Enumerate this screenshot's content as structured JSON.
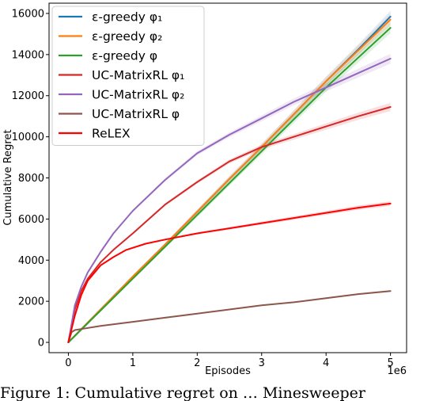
{
  "chart_data": {
    "type": "line",
    "xlabel": "Episodes",
    "ylabel": "Cumulative Regret",
    "x_offset_label": "1e6",
    "xlim": [
      -0.3,
      5.25
    ],
    "ylim": [
      -500,
      16500
    ],
    "xticks": [
      0,
      1,
      2,
      3,
      4,
      5
    ],
    "yticks": [
      0,
      2000,
      4000,
      6000,
      8000,
      10000,
      12000,
      14000,
      16000
    ],
    "legend_position": "top-left",
    "grid": false,
    "series": [
      {
        "name": "ε-greedy φ₁",
        "color": "#1f77b4",
        "x": [
          0,
          0.5,
          1,
          1.5,
          2,
          2.5,
          3,
          3.5,
          4,
          4.5,
          5
        ],
        "y": [
          0,
          1600,
          3200,
          4750,
          6350,
          7950,
          9500,
          11100,
          12700,
          14250,
          15850
        ]
      },
      {
        "name": "ε-greedy φ₂",
        "color": "#ff7f0e",
        "x": [
          0,
          0.5,
          1,
          1.5,
          2,
          2.5,
          3,
          3.5,
          4,
          4.5,
          5
        ],
        "y": [
          0,
          1600,
          3200,
          4750,
          6350,
          7950,
          9500,
          11100,
          12700,
          14200,
          15700
        ]
      },
      {
        "name": "ε-greedy φ",
        "color": "#2ca02c",
        "x": [
          0,
          0.5,
          1,
          1.5,
          2,
          2.5,
          3,
          3.5,
          4,
          4.5,
          5
        ],
        "y": [
          0,
          1550,
          3100,
          4650,
          6200,
          7750,
          9300,
          10850,
          12400,
          13850,
          15300
        ]
      },
      {
        "name": "UC-MatrixRL φ₁",
        "color": "#d62728",
        "x": [
          0,
          0.1,
          0.2,
          0.3,
          0.5,
          0.7,
          1,
          1.5,
          2,
          2.5,
          3,
          3.5,
          4,
          4.5,
          5
        ],
        "y": [
          0,
          1600,
          2500,
          3100,
          3900,
          4500,
          5300,
          6700,
          7800,
          8800,
          9500,
          10000,
          10500,
          11000,
          11450
        ]
      },
      {
        "name": "UC-MatrixRL φ₂",
        "color": "#9467bd",
        "x": [
          0,
          0.1,
          0.2,
          0.3,
          0.5,
          0.7,
          1,
          1.5,
          2,
          2.5,
          3,
          3.5,
          4,
          4.5,
          5
        ],
        "y": [
          0,
          1800,
          2700,
          3400,
          4400,
          5300,
          6400,
          7900,
          9200,
          10100,
          10900,
          11700,
          12400,
          13100,
          13800
        ]
      },
      {
        "name": "UC-MatrixRL φ",
        "color": "#8c564b",
        "x": [
          0,
          0.05,
          0.1,
          0.2,
          0.5,
          1,
          1.5,
          2,
          2.5,
          3,
          3.5,
          4,
          4.5,
          5
        ],
        "y": [
          0,
          500,
          600,
          650,
          800,
          1000,
          1200,
          1400,
          1600,
          1800,
          1950,
          2150,
          2350,
          2500
        ]
      },
      {
        "name": "ReLEX",
        "color": "#ff0000",
        "x": [
          0,
          0.1,
          0.2,
          0.3,
          0.5,
          0.7,
          0.9,
          1.2,
          1.5,
          2,
          2.5,
          3,
          3.5,
          4,
          4.5,
          5
        ],
        "y": [
          0,
          1300,
          2300,
          3000,
          3750,
          4150,
          4500,
          4800,
          5000,
          5300,
          5550,
          5800,
          6050,
          6300,
          6550,
          6750
        ]
      }
    ]
  },
  "caption": {
    "text": "Figure 1: Cumulative regret on … Minesweeper"
  }
}
